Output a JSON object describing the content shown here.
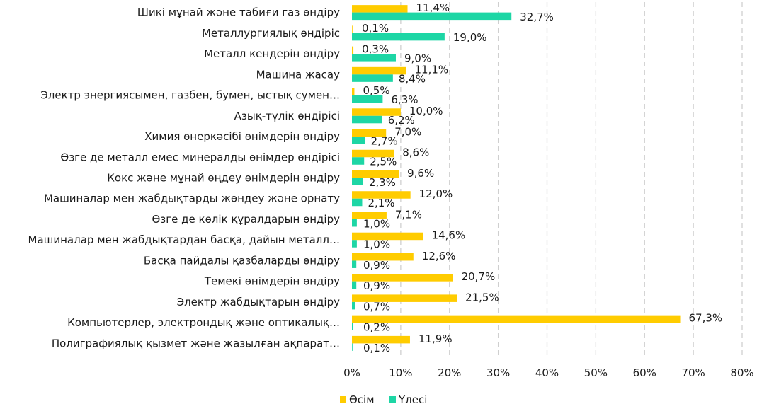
{
  "chart_data": {
    "type": "bar",
    "orientation": "horizontal",
    "categories": [
      "Шикі мұнай және табиғи газ өндіру",
      "Металлургиялық өндіріс",
      "Металл кендерін өндіру",
      "Машина жасау",
      "Электр энергиясымен, газбен, бумен, ыстық сумен…",
      "Азық-түлік өндірісі",
      "Химия өнеркәсібі өнімдерін өндіру",
      "Өзге де металл емес минералды өнімдер өндірісі",
      "Кокс және мұнай өңдеу өнімдерін өндіру",
      "Машиналар мен жабдықтарды жөндеу және орнату",
      "Өзге де көлік құралдарын өндіру",
      "Машиналар мен жабдықтардан басқа, дайын металл…",
      "Басқа пайдалы қазбаларды өндіру",
      "Темекі өнімдерін өндіру",
      "Электр жабдықтарын өндіру",
      "Компьютерлер, электрондық және оптикалық…",
      "Полиграфиялық қызмет және жазылған ақпарат…"
    ],
    "series": [
      {
        "name": "Өсім",
        "color": "#FFCC00",
        "values": [
          11.4,
          0.1,
          0.3,
          11.1,
          0.5,
          10.0,
          7.0,
          8.6,
          9.6,
          12.0,
          7.1,
          14.6,
          12.6,
          20.7,
          21.5,
          67.3,
          11.9
        ],
        "labels": [
          "11,4%",
          "0,1%",
          "0,3%",
          "11,1%",
          "0,5%",
          "10,0%",
          "7,0%",
          "8,6%",
          "9,6%",
          "12,0%",
          "7,1%",
          "14,6%",
          "12,6%",
          "20,7%",
          "21,5%",
          "67,3%",
          "11,9%"
        ]
      },
      {
        "name": "Үлесі",
        "color": "#1DD6A5",
        "values": [
          32.7,
          19.0,
          9.0,
          8.4,
          6.3,
          6.2,
          2.7,
          2.5,
          2.3,
          2.1,
          1.0,
          1.0,
          0.9,
          0.9,
          0.7,
          0.2,
          0.1
        ],
        "labels": [
          "32,7%",
          "19,0%",
          "9,0%",
          "8,4%",
          "6,3%",
          "6,2%",
          "2,7%",
          "2,5%",
          "2,3%",
          "2,1%",
          "1,0%",
          "1,0%",
          "0,9%",
          "0,9%",
          "0,7%",
          "0,2%",
          "0,1%"
        ]
      }
    ],
    "xlim": [
      0,
      80
    ],
    "xticks": [
      0,
      10,
      20,
      30,
      40,
      50,
      60,
      70,
      80
    ],
    "xtick_labels": [
      "0%",
      "10%",
      "20%",
      "30%",
      "40%",
      "50%",
      "60%",
      "70%",
      "80%"
    ],
    "grid": "vertical dashed",
    "legend": {
      "position": "bottom",
      "entries": [
        "Өсім",
        "Үлесі"
      ]
    },
    "title": "",
    "xlabel": "",
    "ylabel": ""
  }
}
